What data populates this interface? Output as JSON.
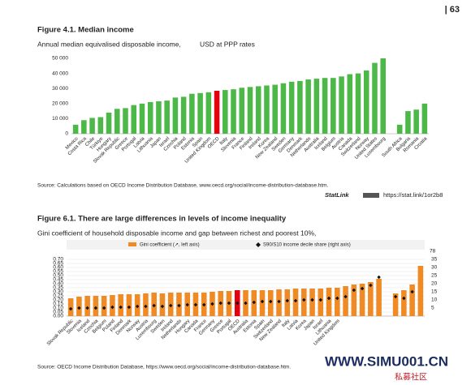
{
  "page_number": "| 63",
  "chart_data": [
    {
      "type": "bar",
      "title": "Figure 4.1. Median income",
      "subtitle": "Annual median equivalised disposable income,",
      "unit_note": "USD at PPP rates",
      "categories": [
        "Mexico",
        "Costa Rica",
        "Chile",
        "Türkiye",
        "Hungary",
        "Slovak Republic",
        "Greece",
        "Portugal",
        "Latvia",
        "Lithuania",
        "Japan",
        "Israel",
        "Czechia",
        "Poland",
        "Estonia",
        "Spain",
        "United Kingdom",
        "OECD",
        "Italy",
        "Slovenia",
        "France",
        "Finland",
        "Ireland",
        "Korea",
        "New Zealand",
        "Sweden",
        "Germany",
        "Denmark",
        "Netherlands",
        "Australia",
        "Iceland",
        "Belgium",
        "Austria",
        "Canada",
        "Switzerland",
        "Norway",
        "United States",
        "Luxembourg",
        null,
        "South Africa",
        "Bulgaria",
        "Romania",
        "Croatia"
      ],
      "series": [
        {
          "name": null,
          "color": "#4cb848",
          "values": [
            6000,
            9000,
            10500,
            11000,
            14000,
            16500,
            17000,
            19000,
            20000,
            21000,
            21500,
            22000,
            24000,
            24500,
            26500,
            27000,
            27500,
            28500,
            29000,
            29500,
            30500,
            31000,
            31500,
            32000,
            32500,
            33500,
            34500,
            35000,
            36000,
            36500,
            37000,
            37000,
            38000,
            39500,
            40000,
            42000,
            47000,
            50000,
            null,
            6000,
            15000,
            16000,
            20000
          ]
        }
      ],
      "colors": [
        "#4cb848",
        "#4cb848",
        "#4cb848",
        "#4cb848",
        "#4cb848",
        "#4cb848",
        "#4cb848",
        "#4cb848",
        "#4cb848",
        "#4cb848",
        "#4cb848",
        "#4cb848",
        "#4cb848",
        "#4cb848",
        "#4cb848",
        "#4cb848",
        "#4cb848",
        "#e3000f",
        "#4cb848",
        "#4cb848",
        "#4cb848",
        "#4cb848",
        "#4cb848",
        "#4cb848",
        "#4cb848",
        "#4cb848",
        "#4cb848",
        "#4cb848",
        "#4cb848",
        "#4cb848",
        "#4cb848",
        "#4cb848",
        "#4cb848",
        "#4cb848",
        "#4cb848",
        "#4cb848",
        "#4cb848",
        "#4cb848",
        null,
        "#4cb848",
        "#4cb848",
        "#4cb848",
        "#4cb848"
      ],
      "ylim": [
        0,
        50000
      ],
      "yticks": [
        0,
        {
          "value": 10000,
          "label": "10 000"
        },
        {
          "value": 20000,
          "label": "20 000"
        },
        {
          "value": 30000,
          "label": "30 000"
        },
        {
          "value": 40000,
          "label": "40 000"
        },
        {
          "value": 50000,
          "label": "50 000"
        }
      ],
      "grid": false,
      "source": "Source: Calculations based on OECD Income Distribution Database, www.oecd.org/social/income-distribution-database.htm.",
      "statlink": "StatLink",
      "statlink_url": "https://stat.link/1or2b8"
    },
    {
      "type": "bar",
      "title": "Figure 6.1. There are large differences in levels of income inequality",
      "subtitle": "Gini coefficient of household disposable income and gap between richest and poorest 10%,",
      "categories": [
        "Slovak Republic",
        "Slovenia",
        "Iceland",
        "Czechia",
        "Belgium",
        "Poland",
        "Finland",
        "Denmark",
        "Norway",
        "Austria",
        "Luxembourg",
        "Sweden",
        "Ireland",
        "Netherlands",
        "Hungary",
        "Canada",
        "France",
        "Germany",
        "Greece",
        "Portugal",
        "OECD",
        "Australia",
        "Estonia",
        "Spain",
        "Switzerland",
        "New Zealand",
        "Italy",
        "Latvia",
        "Korea",
        "Japan",
        "Israel",
        "Lithuania",
        "United Kingdom",
        null,
        null,
        null,
        null,
        null,
        null,
        null,
        null,
        null,
        null
      ],
      "series": [
        {
          "name": "Gini coefficient (↗, left axis)",
          "color": "#f08a24",
          "values": [
            0.22,
            0.24,
            0.25,
            0.25,
            0.25,
            0.26,
            0.27,
            0.27,
            0.27,
            0.28,
            0.29,
            0.28,
            0.29,
            0.29,
            0.29,
            0.29,
            0.29,
            0.3,
            0.31,
            0.31,
            0.32,
            0.32,
            0.32,
            0.32,
            0.32,
            0.33,
            0.33,
            0.34,
            0.34,
            0.34,
            0.34,
            0.35,
            0.35,
            0.37,
            0.39,
            0.4,
            0.42,
            0.46,
            null,
            0.28,
            0.32,
            0.39,
            0.62
          ]
        },
        {
          "name": "S90/S10 income decile share (right axis)",
          "color": "#111111",
          "axis": "y2",
          "values": [
            4.5,
            5,
            5,
            5,
            5,
            5.5,
            5.5,
            5.5,
            6,
            6,
            6.5,
            6,
            6.5,
            6.5,
            7,
            7,
            7,
            7.5,
            8,
            8,
            8,
            8,
            8.5,
            9,
            9,
            9,
            9.5,
            9.5,
            10,
            10,
            10,
            11,
            11,
            12,
            16,
            17,
            19,
            24,
            null,
            12,
            11,
            15,
            null
          ]
        }
      ],
      "colors": [
        "#f08a24",
        "#f08a24",
        "#f08a24",
        "#f08a24",
        "#f08a24",
        "#f08a24",
        "#f08a24",
        "#f08a24",
        "#f08a24",
        "#f08a24",
        "#f08a24",
        "#f08a24",
        "#f08a24",
        "#f08a24",
        "#f08a24",
        "#f08a24",
        "#f08a24",
        "#f08a24",
        "#f08a24",
        "#f08a24",
        "#e3000f",
        "#f08a24",
        "#f08a24",
        "#f08a24",
        "#f08a24",
        "#f08a24",
        "#f08a24",
        "#f08a24",
        "#f08a24",
        "#f08a24",
        "#f08a24",
        "#f08a24",
        "#f08a24",
        "#f08a24",
        "#f08a24",
        "#f08a24",
        "#f08a24",
        "#f08a24",
        null,
        "#f08a24",
        "#f08a24",
        "#f08a24",
        "#f08a24"
      ],
      "ylim": [
        0,
        0.7
      ],
      "yticks": [
        {
          "value": 0,
          "label": "0.00"
        },
        {
          "value": 0.05,
          "label": "0.05"
        },
        {
          "value": 0.1,
          "label": "0.10"
        },
        {
          "value": 0.15,
          "label": "0.15"
        },
        {
          "value": 0.2,
          "label": "0.20"
        },
        {
          "value": 0.25,
          "label": "0.25"
        },
        {
          "value": 0.3,
          "label": "0.30"
        },
        {
          "value": 0.35,
          "label": "0.35"
        },
        {
          "value": 0.4,
          "label": "0.40"
        },
        {
          "value": 0.45,
          "label": "0.45"
        },
        {
          "value": 0.5,
          "label": "0.50"
        },
        {
          "value": 0.55,
          "label": "0.55"
        },
        {
          "value": 0.6,
          "label": "0.60"
        },
        {
          "value": 0.65,
          "label": "0.65"
        },
        {
          "value": 0.7,
          "label": "0.70"
        }
      ],
      "y2lim": [
        0,
        35
      ],
      "y2ticks": [
        5,
        10,
        15,
        20,
        25,
        30,
        35
      ],
      "annotation": "78",
      "grid": true,
      "source": "Source: OECD Income Distribution Database, https://www.oecd.org/social/income-distribution-database.htm."
    }
  ],
  "watermark": "WWW.SIMU001.CN",
  "watermark_sub": "私募社区"
}
